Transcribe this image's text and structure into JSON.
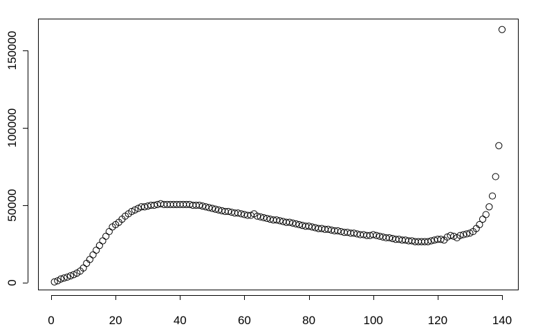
{
  "chart_data": {
    "type": "scatter",
    "title": "",
    "xlabel": "",
    "ylabel": "",
    "xlim": [
      0,
      140
    ],
    "ylim": [
      0,
      163000
    ],
    "x_ticks": [
      0,
      20,
      40,
      60,
      80,
      100,
      120,
      140
    ],
    "y_ticks": [
      0,
      50000,
      100000,
      150000
    ],
    "x_tick_labels": [
      "0",
      "20",
      "40",
      "60",
      "80",
      "100",
      "120",
      "140"
    ],
    "y_tick_labels": [
      "0",
      "50000",
      "100000",
      "150000"
    ],
    "grid": false,
    "marker": "open-circle",
    "point_color": "#000000",
    "x": [
      1,
      2,
      3,
      4,
      5,
      6,
      7,
      8,
      9,
      10,
      11,
      12,
      13,
      14,
      15,
      16,
      17,
      18,
      19,
      20,
      21,
      22,
      23,
      24,
      25,
      26,
      27,
      28,
      29,
      30,
      31,
      32,
      33,
      34,
      35,
      36,
      37,
      38,
      39,
      40,
      41,
      42,
      43,
      44,
      45,
      46,
      47,
      48,
      49,
      50,
      51,
      52,
      53,
      54,
      55,
      56,
      57,
      58,
      59,
      60,
      61,
      62,
      63,
      64,
      65,
      66,
      67,
      68,
      69,
      70,
      71,
      72,
      73,
      74,
      75,
      76,
      77,
      78,
      79,
      80,
      81,
      82,
      83,
      84,
      85,
      86,
      87,
      88,
      89,
      90,
      91,
      92,
      93,
      94,
      95,
      96,
      97,
      98,
      99,
      100,
      101,
      102,
      103,
      104,
      105,
      106,
      107,
      108,
      109,
      110,
      111,
      112,
      113,
      114,
      115,
      116,
      117,
      118,
      119,
      120,
      121,
      122,
      123,
      124,
      125,
      126,
      127,
      128,
      129,
      130,
      131,
      132,
      133,
      134,
      135,
      136,
      137,
      138,
      139,
      140
    ],
    "y": [
      500,
      1200,
      2400,
      3000,
      3600,
      4400,
      5200,
      6200,
      7500,
      9500,
      12500,
      15000,
      18000,
      21000,
      24000,
      27000,
      30000,
      33000,
      36000,
      37500,
      39000,
      41000,
      43000,
      44500,
      46000,
      47000,
      48000,
      49000,
      49000,
      49500,
      50000,
      50000,
      50500,
      51000,
      50500,
      50500,
      50500,
      50500,
      50500,
      50500,
      50500,
      50500,
      50500,
      50000,
      50000,
      50000,
      49500,
      49000,
      48500,
      48000,
      47500,
      47000,
      46500,
      46000,
      46000,
      45500,
      45000,
      45000,
      44500,
      44000,
      43500,
      43500,
      44500,
      43000,
      42500,
      42000,
      41500,
      41000,
      40500,
      40500,
      40000,
      39500,
      39000,
      39000,
      38500,
      38000,
      37500,
      37000,
      36500,
      36500,
      36000,
      35500,
      35000,
      35000,
      34500,
      34500,
      34000,
      33500,
      33500,
      33000,
      32500,
      32500,
      32000,
      32000,
      31500,
      31000,
      31000,
      30500,
      30500,
      31000,
      30500,
      30000,
      29500,
      29000,
      29000,
      28500,
      28000,
      28000,
      27500,
      27500,
      27000,
      27000,
      26500,
      26500,
      26500,
      26500,
      26500,
      27000,
      27500,
      28000,
      28000,
      27500,
      29500,
      30500,
      30000,
      29000,
      30500,
      31000,
      31500,
      32000,
      33000,
      35000,
      37500,
      41000,
      44000,
      49000,
      56000,
      68500,
      88500,
      163500
    ]
  }
}
